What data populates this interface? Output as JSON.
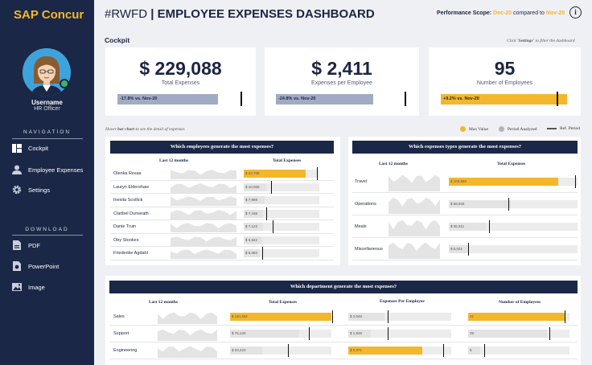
{
  "brand": "SAP Concur",
  "user": {
    "name": "Username",
    "role": "HR Officer"
  },
  "navigation": {
    "title": "NAVIGATION",
    "items": [
      {
        "label": "Cockpit",
        "icon": "dashboard-icon"
      },
      {
        "label": "Employee Expenses",
        "icon": "person-icon"
      },
      {
        "label": "Settings",
        "icon": "gear-icon"
      }
    ]
  },
  "download": {
    "title": "DOWNLOAD",
    "items": [
      {
        "label": "PDF",
        "icon": "pdf-icon"
      },
      {
        "label": "PowerPoint",
        "icon": "powerpoint-icon"
      },
      {
        "label": "Image",
        "icon": "image-icon"
      }
    ]
  },
  "header": {
    "tag": "#RWFD",
    "sep": "|",
    "title": "EMPLOYEE EXPENSES DASHBOARD",
    "scope_label": "Performance Scope:",
    "scope_current": "Dec-20",
    "scope_compared": "compared to",
    "scope_ref": "Nov-20"
  },
  "cockpit": {
    "title": "Cockpit",
    "hint_pre": "Click",
    "hint_bold": "'Settings'",
    "hint_post": "to filter the dashboard"
  },
  "colors": {
    "navy": "#1b2747",
    "gold": "#f3b72c",
    "slate": "#a1abc4",
    "grey": "#c8c8c8"
  },
  "kpis": [
    {
      "value": "$ 229,088",
      "label": "Total Expenses",
      "delta": "-17.8% vs. Nov-20",
      "fill": 0.8,
      "ref": 0.9,
      "color": "#a1abc4"
    },
    {
      "value": "$ 2,411",
      "label": "Expenses per Employee",
      "delta": "-24.8% vs. Nov-20",
      "fill": 0.74,
      "ref": 0.9,
      "color": "#a1abc4"
    },
    {
      "value": "95",
      "label": "Number of Employees",
      "delta": "+9.2% vs. Nov-20",
      "fill": 0.98,
      "ref": 0.9,
      "color": "#f3b72c"
    }
  ],
  "hover_hint": {
    "pre": "Hover",
    "bold": "bar chart",
    "post": "to see the detail of expenses"
  },
  "legend": [
    {
      "label": "Max Value",
      "kind": "dot",
      "color": "#f3b72c"
    },
    {
      "label": "Period Analyzed",
      "kind": "dot",
      "color": "#b4b4b4"
    },
    {
      "label": "Ref. Period",
      "kind": "line",
      "color": "#555555"
    }
  ],
  "employees_panel": {
    "title": "Which employees generate the most expenses?",
    "col_trend": "Last 12 months",
    "col_total": "Total Expenses",
    "rows": [
      {
        "name": "Olenka Rosas",
        "value": "$ 23,769",
        "fill": 0.82,
        "ref": 0.97,
        "max": true
      },
      {
        "name": "Lauryn Eldershaw",
        "value": "$ 10,068",
        "fill": 0.3,
        "ref": 0.36,
        "max": false
      },
      {
        "name": "Inesita Scollick",
        "value": "$ 7,988",
        "fill": 0.28,
        "ref": 0.0,
        "max": false
      },
      {
        "name": "Claribel Dunseath",
        "value": "$ 7,188",
        "fill": 0.25,
        "ref": 0.3,
        "max": false
      },
      {
        "name": "Danie Truin",
        "value": "$ 7,123",
        "fill": 0.25,
        "ref": 0.38,
        "max": false
      },
      {
        "name": "Oby Stookes",
        "value": "$ 6,842",
        "fill": 0.24,
        "ref": 0.0,
        "max": false
      },
      {
        "name": "Friederike Agdahl",
        "value": "$ 6,083",
        "fill": 0.21,
        "ref": 0.24,
        "max": false
      }
    ]
  },
  "types_panel": {
    "title": "Which expenses types generate the most expenses?",
    "col_trend": "Last 12 months",
    "col_total": "Total Expenses",
    "rows": [
      {
        "name": "Travel",
        "value": "$ 105,569",
        "fill": 0.85,
        "ref": 0.98,
        "max": true
      },
      {
        "name": "Operations",
        "value": "$ 58,934",
        "fill": 0.48,
        "ref": 0.46,
        "max": false
      },
      {
        "name": "Meals",
        "value": "$ 35,611",
        "fill": 0.29,
        "ref": 0.31,
        "max": false
      },
      {
        "name": "Miscellaneous",
        "value": "$ 5,041",
        "fill": 0.15,
        "ref": 0.15,
        "max": false
      }
    ]
  },
  "dept_panel": {
    "title": "Which department generate the most expenses?",
    "col_trend": "Last 12 months",
    "col_total": "Total Expenses",
    "col_per_emp": "Expenses Per Employee",
    "col_count": "Number of Employees",
    "rows": [
      {
        "name": "Sales",
        "total": "$ 110,353",
        "total_fill": 1.0,
        "total_ref": 1.01,
        "total_max": true,
        "per": "$ 2,946",
        "per_fill": 0.35,
        "per_ref": 0.38,
        "per_max": false,
        "count": "41",
        "count_fill": 0.96,
        "count_ref": 0.95,
        "count_max": true
      },
      {
        "name": "Support",
        "total": "$ 75,120",
        "total_fill": 0.68,
        "total_ref": 0.78,
        "total_max": false,
        "per": "$ 1,926",
        "per_fill": 0.22,
        "per_ref": 0.38,
        "per_max": false,
        "count": "39",
        "count_fill": 0.78,
        "count_ref": 0.8,
        "count_max": false
      },
      {
        "name": "Engineering",
        "total": "$ 33,423",
        "total_fill": 0.32,
        "total_ref": 0.57,
        "total_max": false,
        "per": "$ 5,971",
        "per_fill": 0.72,
        "per_ref": 0.92,
        "per_max": true,
        "count": "6",
        "count_fill": 0.12,
        "count_ref": 0.16,
        "count_max": false
      }
    ]
  }
}
